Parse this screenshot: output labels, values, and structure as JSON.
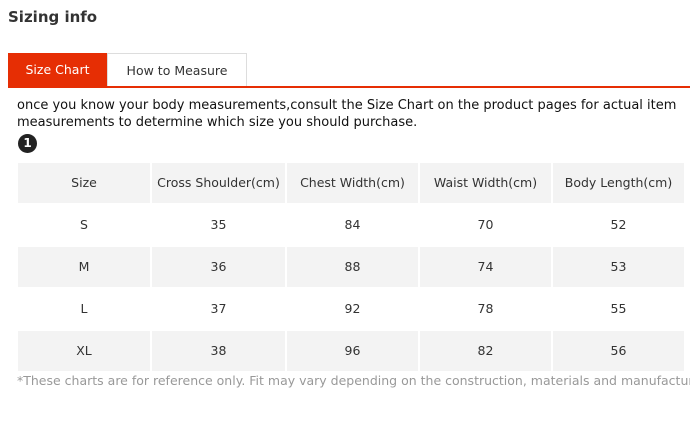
{
  "header": {
    "title": "Sizing info"
  },
  "tabs": [
    "Size Chart",
    "How to Measure"
  ],
  "description": "once you know your body measurements,consult the Size Chart on the product pages for actual item measurements to determine which size you should purchase.",
  "badge": "1",
  "table": {
    "columns": [
      "Size",
      "Cross Shoulder(cm)",
      "Chest Width(cm)",
      "Waist Width(cm)",
      "Body Length(cm)"
    ],
    "rows": [
      [
        "S",
        35,
        84,
        70,
        52
      ],
      [
        "M",
        36,
        88,
        74,
        53
      ],
      [
        "L",
        37,
        92,
        78,
        55
      ],
      [
        "XL",
        38,
        96,
        82,
        56
      ]
    ]
  },
  "footnote": "*These charts are for reference only. Fit may vary depending on the construction, materials and manufacturer."
}
